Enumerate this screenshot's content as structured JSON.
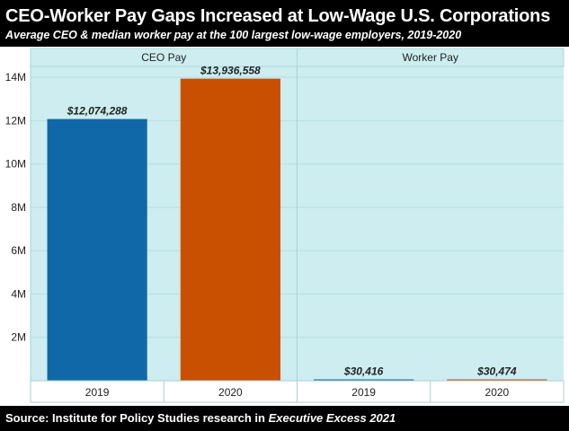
{
  "header": {
    "title": "CEO-Worker Pay Gaps Increased at Low-Wage U.S. Corporations",
    "subtitle": "Average CEO & median worker pay at the 100 largest low-wage employers, 2019-2020"
  },
  "footer": {
    "source_prefix": "Source: Institute for Policy Studies research in ",
    "source_publication": "Executive Excess 2021"
  },
  "colors": {
    "plot_background": "#cdedf0",
    "color_2019": "#1068a8",
    "color_2020": "#c95000",
    "grid": "#b8dde2",
    "text": "#222222"
  },
  "chart_data": {
    "type": "bar",
    "panels": [
      {
        "title": "CEO Pay",
        "categories": [
          "2019",
          "2020"
        ],
        "values": [
          12074288,
          13936558
        ],
        "value_labels": [
          "$12,074,288",
          "$13,936,558"
        ]
      },
      {
        "title": "Worker Pay",
        "categories": [
          "2019",
          "2020"
        ],
        "values": [
          30416,
          30474
        ],
        "value_labels": [
          "$30,416",
          "$30,474"
        ]
      }
    ],
    "ylim": [
      0,
      14500000
    ],
    "yticks": [
      2000000,
      4000000,
      6000000,
      8000000,
      10000000,
      12000000,
      14000000
    ],
    "ytick_labels": [
      "2M",
      "4M",
      "6M",
      "8M",
      "10M",
      "12M",
      "14M"
    ],
    "grid": true
  }
}
